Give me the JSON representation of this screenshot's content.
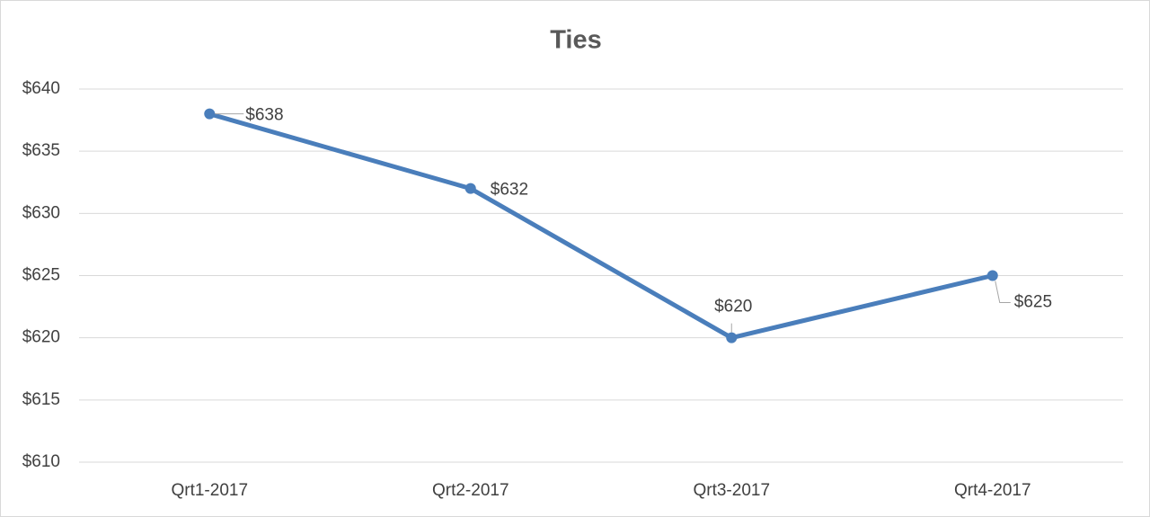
{
  "chart_data": {
    "type": "line",
    "title": "Ties",
    "categories": [
      "Qrt1-2017",
      "Qrt2-2017",
      "Qrt3-2017",
      "Qrt4-2017"
    ],
    "series": [
      {
        "name": "Ties",
        "color": "#4a7ebb",
        "values": [
          638,
          632,
          620,
          625
        ],
        "value_labels": [
          "$638",
          "$632",
          "$620",
          "$625"
        ]
      }
    ],
    "ylim": [
      610,
      640
    ],
    "yticks": [
      {
        "value": 610,
        "label": "$610"
      },
      {
        "value": 615,
        "label": "$615"
      },
      {
        "value": 620,
        "label": "$620"
      },
      {
        "value": 625,
        "label": "$625"
      },
      {
        "value": 630,
        "label": "$630"
      },
      {
        "value": 635,
        "label": "$635"
      },
      {
        "value": 640,
        "label": "$640"
      }
    ],
    "grid": true
  }
}
